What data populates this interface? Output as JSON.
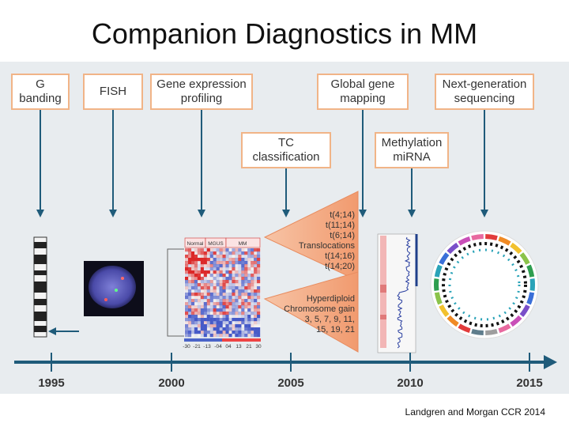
{
  "title": "Companion Diagnostics in MM",
  "credit": "Landgren and Morgan CCR 2014",
  "boxes": [
    {
      "id": "g-banding",
      "lines": [
        "G",
        "banding"
      ]
    },
    {
      "id": "fish",
      "lines": [
        "FISH"
      ]
    },
    {
      "id": "gep",
      "lines": [
        "Gene expression",
        "profiling"
      ]
    },
    {
      "id": "ggm",
      "lines": [
        "Global gene",
        "mapping"
      ]
    },
    {
      "id": "ngs",
      "lines": [
        "Next-generation",
        "sequencing"
      ]
    },
    {
      "id": "tc",
      "lines": [
        "TC",
        "classification"
      ]
    },
    {
      "id": "methyl",
      "lines": [
        "Methylation",
        "miRNA"
      ]
    }
  ],
  "heatmap": {
    "headers": [
      "Normal",
      "MGUS",
      "MM"
    ],
    "scale": [
      "-30",
      "-21",
      "-13",
      "-04",
      "04",
      "13",
      "21",
      "30"
    ]
  },
  "translocations": [
    "t(4;14)",
    "t(11;14)",
    "t(6;14)",
    "Translocations",
    "t(14;16)",
    "t(14;20)"
  ],
  "hyperdiploid": [
    "Hyperdiploid",
    "Chromosome gain",
    "3, 5, 7, 9, 11,",
    "15, 19, 21"
  ],
  "timeline": {
    "years": [
      "1995",
      "2000",
      "2005",
      "2010",
      "2015"
    ]
  },
  "colors": {
    "accent": "#f1b487",
    "arrow": "#1f5b7a",
    "triangle": "#f3a983",
    "panel": "#e8ecef"
  }
}
